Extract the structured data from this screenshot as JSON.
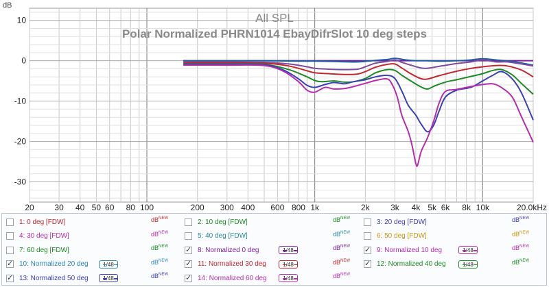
{
  "chart_data": {
    "type": "line",
    "title": "All SPL",
    "subtitle": "Polar Normalized PHRN1014  EbayDifrSlot  10 deg steps",
    "ylabel": "dB",
    "ylim": [
      -35,
      13
    ],
    "xlim": [
      20,
      20000
    ],
    "xscale": "log",
    "grid": true,
    "y_ticks": [
      "10",
      "0",
      "-10",
      "-20",
      "-30"
    ],
    "x_ticks": [
      {
        "v": 20,
        "t": "20"
      },
      {
        "v": 30,
        "t": "30"
      },
      {
        "v": 40,
        "t": "40"
      },
      {
        "v": 50,
        "t": "50"
      },
      {
        "v": 60,
        "t": "60"
      },
      {
        "v": 80,
        "t": "80"
      },
      {
        "v": 100,
        "t": "100"
      },
      {
        "v": 200,
        "t": "200"
      },
      {
        "v": 300,
        "t": "300"
      },
      {
        "v": 400,
        "t": "400"
      },
      {
        "v": 600,
        "t": "600"
      },
      {
        "v": 800,
        "t": "800"
      },
      {
        "v": 1000,
        "t": "1k"
      },
      {
        "v": 2000,
        "t": "2k"
      },
      {
        "v": 3000,
        "t": "3k"
      },
      {
        "v": 4000,
        "t": "4k"
      },
      {
        "v": 5000,
        "t": "5k"
      },
      {
        "v": 6000,
        "t": "6k"
      },
      {
        "v": 8000,
        "t": "8k"
      },
      {
        "v": 10000,
        "t": "10k"
      },
      {
        "v": 20000,
        "t": "20.0kHz"
      }
    ],
    "series": [
      {
        "name": "8: Normalized 0 deg",
        "color": "#7a1fa2",
        "x": [
          165,
          1000,
          2000,
          5000,
          10000,
          20000
        ],
        "y": [
          0,
          0,
          0,
          0,
          0,
          0
        ]
      },
      {
        "name": "9: Normalized 10 deg",
        "color": "#1c5fa0",
        "x": [
          165,
          300,
          500,
          800,
          1000,
          1300,
          1800,
          2300,
          2700,
          3000,
          3500,
          4000,
          4600,
          5500,
          7000,
          8500,
          10000,
          12000,
          15000,
          20000
        ],
        "y": [
          0,
          0,
          0,
          -0.1,
          -0.1,
          -0.2,
          -0.3,
          0.1,
          0.3,
          0.6,
          0.2,
          0,
          0,
          -0.1,
          0,
          0.2,
          0.5,
          0.2,
          -0.2,
          -1.1
        ]
      },
      {
        "name": "10: Normalized 20 deg",
        "color": "#7c4aa0",
        "x": [
          165,
          300,
          500,
          700,
          900,
          1000,
          1200,
          1500,
          1800,
          2000,
          2300,
          2700,
          3000,
          3300,
          3800,
          4500,
          5500,
          7000,
          8500,
          10000,
          12000,
          14000,
          17000,
          20000
        ],
        "y": [
          -0.3,
          -0.3,
          -0.4,
          -0.8,
          -1.5,
          -1.9,
          -2.1,
          -2.2,
          -2.1,
          -1.5,
          -0.6,
          -0.2,
          0.2,
          -0.4,
          -1.2,
          -1.9,
          -1.4,
          -0.7,
          -0.3,
          0.2,
          -0.3,
          -0.3,
          -0.8,
          -1.3
        ]
      },
      {
        "name": "11: Normalized 30 deg",
        "color": "#c0282d",
        "x": [
          165,
          300,
          500,
          700,
          900,
          1000,
          1200,
          1500,
          1800,
          2000,
          2300,
          2700,
          3000,
          3300,
          3800,
          4500,
          5500,
          7000,
          8500,
          10000,
          12000,
          14000,
          17000,
          20000
        ],
        "y": [
          -0.5,
          -0.5,
          -0.6,
          -1.3,
          -2.5,
          -3.0,
          -3.2,
          -3.4,
          -3.3,
          -2.7,
          -1.6,
          -0.9,
          -0.8,
          -1.8,
          -3.4,
          -4.6,
          -3.7,
          -2.6,
          -1.9,
          -1.5,
          -1.2,
          -1.3,
          -2.3,
          -4.0
        ]
      },
      {
        "name": "12: Normalized 40 deg",
        "color": "#1d8a24",
        "x": [
          165,
          300,
          500,
          700,
          900,
          1000,
          1100,
          1300,
          1500,
          1700,
          2000,
          2300,
          2700,
          3000,
          3300,
          3800,
          4300,
          4700,
          5200,
          6000,
          7000,
          8500,
          10000,
          11500,
          13000,
          15000,
          17000,
          20000
        ],
        "y": [
          -0.8,
          -0.8,
          -0.9,
          -2.2,
          -4.0,
          -4.9,
          -5.2,
          -5.0,
          -5.3,
          -5.2,
          -4.4,
          -3.0,
          -2.2,
          -2.4,
          -3.6,
          -5.2,
          -6.5,
          -7.0,
          -6.2,
          -5.3,
          -4.7,
          -3.9,
          -3.2,
          -2.4,
          -2.2,
          -3.5,
          -5.6,
          -8.3
        ]
      },
      {
        "name": "13: Normalized 50 deg",
        "color": "#3a3fb6",
        "x": [
          165,
          300,
          500,
          650,
          800,
          900,
          1000,
          1150,
          1300,
          1500,
          1700,
          2000,
          2300,
          2700,
          3000,
          3300,
          3600,
          4000,
          4300,
          4700,
          5100,
          5500,
          6000,
          7000,
          8500,
          10000,
          11500,
          13000,
          15000,
          17000,
          20000
        ],
        "y": [
          -0.9,
          -0.9,
          -1.0,
          -2.3,
          -4.5,
          -6.1,
          -6.6,
          -5.9,
          -5.4,
          -5.7,
          -5.2,
          -4.7,
          -4.0,
          -3.6,
          -4.4,
          -7.5,
          -11.0,
          -13.5,
          -15.7,
          -17.6,
          -16.0,
          -12.5,
          -9.0,
          -7.3,
          -6.6,
          -5.0,
          -3.6,
          -2.7,
          -4.5,
          -7.9,
          -14.7
        ]
      },
      {
        "name": "14: Normalized 60 deg",
        "color": "#b52dac",
        "x": [
          165,
          300,
          500,
          650,
          800,
          900,
          1000,
          1150,
          1300,
          1500,
          1700,
          2000,
          2300,
          2700,
          2900,
          3100,
          3300,
          3600,
          3800,
          4000,
          4100,
          4300,
          4700,
          5100,
          5500,
          6000,
          7000,
          8500,
          10000,
          11500,
          13000,
          15000,
          17000,
          20000
        ],
        "y": [
          -1.1,
          -1.1,
          -1.2,
          -2.6,
          -5.2,
          -7.3,
          -7.8,
          -6.6,
          -7.0,
          -6.9,
          -6.4,
          -5.6,
          -4.9,
          -4.5,
          -6.0,
          -9.0,
          -13.5,
          -17.5,
          -21.0,
          -25.5,
          -25.8,
          -22.5,
          -19.0,
          -15.0,
          -10.5,
          -7.6,
          -7.1,
          -6.4,
          -5.9,
          -5.7,
          -6.7,
          -9.0,
          -13.8,
          -20.2
        ]
      }
    ]
  },
  "legend": {
    "unit": "dB",
    "unit_sup": "NEW",
    "smoothing": "1/48",
    "items": [
      {
        "label": "1: 0 deg [FDW]",
        "color": "#c0282d",
        "checked": false,
        "smooth": false
      },
      {
        "label": "2: 10 deg [FDW]",
        "color": "#1d8a24",
        "checked": false,
        "smooth": false
      },
      {
        "label": "3: 20 deg [FDW]",
        "color": "#3a3fb6",
        "checked": false,
        "smooth": false
      },
      {
        "label": "4: 30 deg [FDW]",
        "color": "#b52dac",
        "checked": false,
        "smooth": false
      },
      {
        "label": "5: 40 deg [FDW]",
        "color": "#2a8c9a",
        "checked": false,
        "smooth": false
      },
      {
        "label": "6: 50 deg [FDW]",
        "color": "#c9960f",
        "checked": false,
        "smooth": false
      },
      {
        "label": "7: 60 deg [FDW]",
        "color": "#1d8a24",
        "checked": false,
        "smooth": false
      },
      {
        "label": "8: Normalized 0 deg",
        "color": "#7a1fa2",
        "checked": true,
        "smooth": true
      },
      {
        "label": "9: Normalized 10 deg",
        "color": "#b52dac",
        "checked": true,
        "smooth": true
      },
      {
        "label": "10: Normalized 20 deg",
        "color": "#2a87b8",
        "checked": true,
        "smooth": true
      },
      {
        "label": "11: Normalized 30 deg",
        "color": "#c0282d",
        "checked": true,
        "smooth": true
      },
      {
        "label": "12: Normalized 40 deg",
        "color": "#1d8a24",
        "checked": true,
        "smooth": true
      },
      {
        "label": "13: Normalized 50 deg",
        "color": "#3a3fb6",
        "checked": true,
        "smooth": true
      },
      {
        "label": "14: Normalized 60 deg",
        "color": "#b52dac",
        "checked": true,
        "smooth": true
      }
    ]
  }
}
